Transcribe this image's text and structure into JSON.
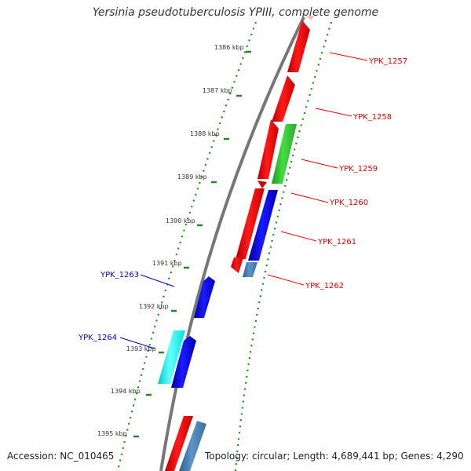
{
  "map": {
    "title": "Yersinia pseudotuberculosis YPIII, complete genome",
    "accession": "Accession: NC_010465",
    "footer": "Topology: circular; Length: 4,689,441 bp; Genes: 4,290"
  },
  "colors": {
    "forward_strand_label": "#cc0000",
    "reverse_strand_label": "#0000bb",
    "backbone": "#777777",
    "tick": "#228822"
  },
  "ticks": [
    "1386 kbp",
    "1387 kbp",
    "1388 kbp",
    "1389 kbp",
    "1390 kbp",
    "1391 kbp",
    "1392 kbp",
    "1393 kbp",
    "1394 kbp",
    "1395 kbp"
  ],
  "genes": [
    {
      "name": "YPK_1257",
      "strand": "forward",
      "color": "#ff0000"
    },
    {
      "name": "YPK_1258",
      "strand": "forward",
      "color": "#ff0000"
    },
    {
      "name": "YPK_1259",
      "strand": "forward",
      "color": "#33cc33"
    },
    {
      "name": "YPK_1260",
      "strand": "forward",
      "color": "#ff0000"
    },
    {
      "name": "YPK_1261",
      "strand": "forward",
      "color": "#0000ee"
    },
    {
      "name": "YPK_1262",
      "strand": "forward",
      "color": "#4682b4"
    },
    {
      "name": "YPK_1263",
      "strand": "reverse",
      "color": "#0000ee"
    },
    {
      "name": "YPK_1264",
      "strand": "reverse",
      "color": "#00ffff"
    }
  ]
}
